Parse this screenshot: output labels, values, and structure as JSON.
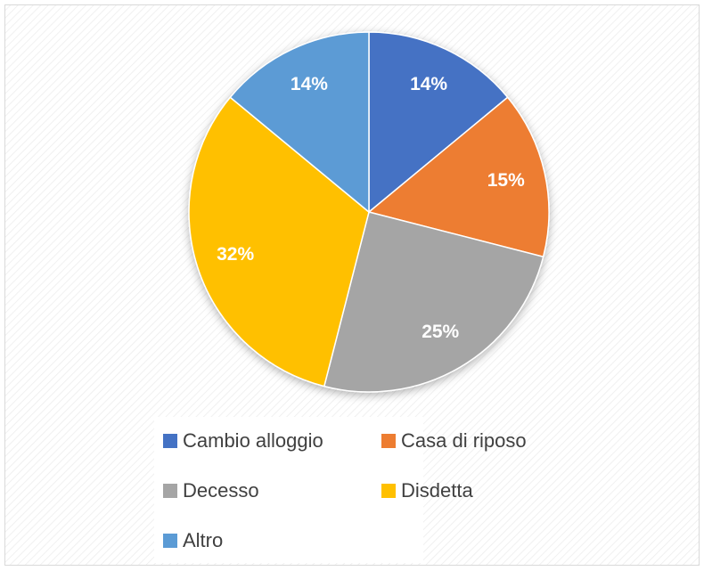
{
  "chart_data": {
    "type": "pie",
    "categories": [
      "Cambio alloggio",
      "Casa di riposo",
      "Decesso",
      "Disdetta",
      "Altro"
    ],
    "values": [
      14,
      15,
      25,
      32,
      14
    ],
    "value_labels": [
      "14%",
      "15%",
      "25%",
      "32%",
      "14%"
    ],
    "colors": [
      "#4472c4",
      "#ed7d31",
      "#a5a5a5",
      "#ffc000",
      "#5b9bd5"
    ],
    "legend": "bottom"
  }
}
